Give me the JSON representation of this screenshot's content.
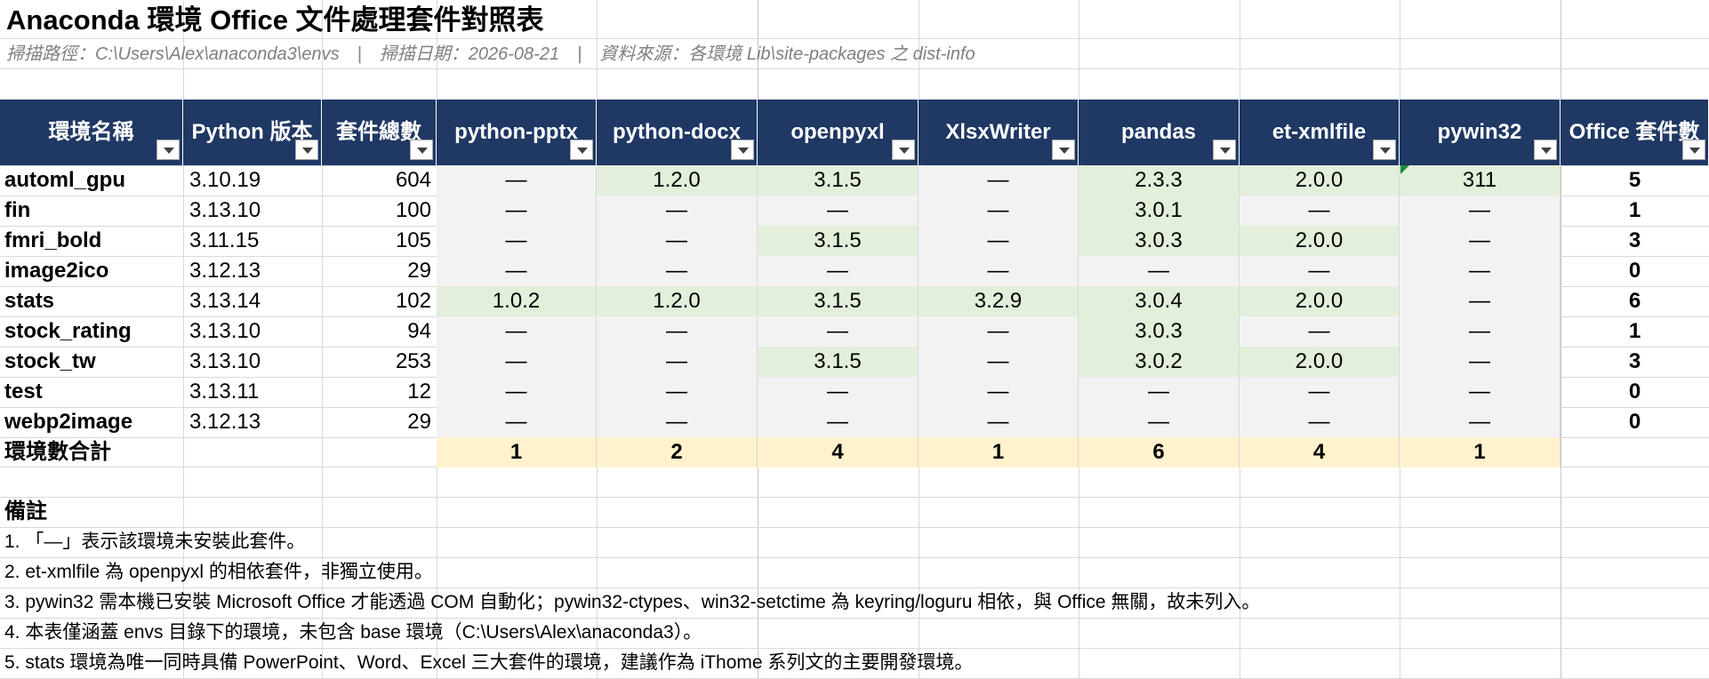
{
  "title": "Anaconda 環境 Office 文件處理套件對照表",
  "subtitle": "掃描路徑：C:\\Users\\Alex\\anaconda3\\envs　|　掃描日期：2026-08-21　|　資料來源：各環境 Lib\\site-packages 之 dist-info",
  "headers": [
    "環境名稱",
    "Python 版本",
    "套件總數",
    "python-pptx",
    "python-docx",
    "openpyxl",
    "XlsxWriter",
    "pandas",
    "et-xmlfile",
    "pywin32",
    "Office 套件數"
  ],
  "rows": [
    {
      "env": "automl_gpu",
      "py": "3.10.19",
      "total": "604",
      "pkgs": [
        "—",
        "1.2.0",
        "3.1.5",
        "—",
        "2.3.3",
        "2.0.0",
        "311"
      ],
      "count": "5"
    },
    {
      "env": "fin",
      "py": "3.13.10",
      "total": "100",
      "pkgs": [
        "—",
        "—",
        "—",
        "—",
        "3.0.1",
        "—",
        "—"
      ],
      "count": "1"
    },
    {
      "env": "fmri_bold",
      "py": "3.11.15",
      "total": "105",
      "pkgs": [
        "—",
        "—",
        "3.1.5",
        "—",
        "3.0.3",
        "2.0.0",
        "—"
      ],
      "count": "3"
    },
    {
      "env": "image2ico",
      "py": "3.12.13",
      "total": "29",
      "pkgs": [
        "—",
        "—",
        "—",
        "—",
        "—",
        "—",
        "—"
      ],
      "count": "0"
    },
    {
      "env": "stats",
      "py": "3.13.14",
      "total": "102",
      "pkgs": [
        "1.0.2",
        "1.2.0",
        "3.1.5",
        "3.2.9",
        "3.0.4",
        "2.0.0",
        "—"
      ],
      "count": "6"
    },
    {
      "env": "stock_rating",
      "py": "3.13.10",
      "total": "94",
      "pkgs": [
        "—",
        "—",
        "—",
        "—",
        "3.0.3",
        "—",
        "—"
      ],
      "count": "1"
    },
    {
      "env": "stock_tw",
      "py": "3.13.10",
      "total": "253",
      "pkgs": [
        "—",
        "—",
        "3.1.5",
        "—",
        "3.0.2",
        "2.0.0",
        "—"
      ],
      "count": "3"
    },
    {
      "env": "test",
      "py": "3.13.11",
      "total": "12",
      "pkgs": [
        "—",
        "—",
        "—",
        "—",
        "—",
        "—",
        "—"
      ],
      "count": "0"
    },
    {
      "env": "webp2image",
      "py": "3.12.13",
      "total": "29",
      "pkgs": [
        "—",
        "—",
        "—",
        "—",
        "—",
        "—",
        "—"
      ],
      "count": "0"
    }
  ],
  "totals": {
    "label": "環境數合計",
    "values": [
      "1",
      "2",
      "4",
      "1",
      "6",
      "4",
      "1"
    ]
  },
  "notes_title": "備註",
  "notes": [
    "1. 「—」表示該環境未安裝此套件。",
    "2. et-xmlfile 為 openpyxl 的相依套件，非獨立使用。",
    "3. pywin32 需本機已安裝 Microsoft Office 才能透過 COM 自動化；pywin32-ctypes、win32-setctime 為 keyring/loguru 相依，與 Office 無關，故未列入。",
    "4. 本表僅涵蓋 envs 目錄下的環境，未包含 base 環境（C:\\Users\\Alex\\anaconda3）。",
    "5. stats 環境為唯一同時具備 PowerPoint、Word、Excel 三大套件的環境，建議作為 iThome 系列文的主要開發環境。"
  ],
  "colors": {
    "header_bg": "#1f3864",
    "installed_bg": "#e2efda",
    "missing_bg": "#f2f2f2",
    "totals_bg": "#fff2cc"
  },
  "icons": {
    "filter": "filter-dropdown-icon",
    "comment": "comment-indicator-icon"
  }
}
